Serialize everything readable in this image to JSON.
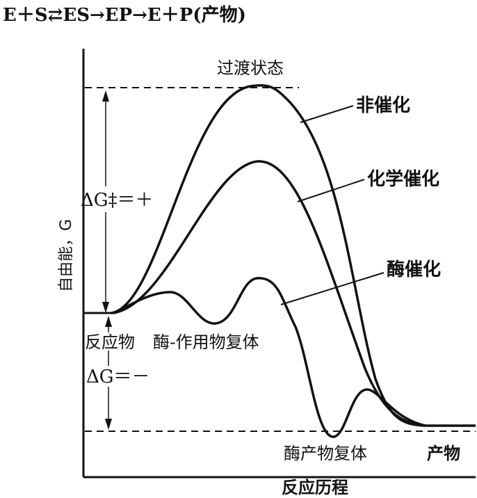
{
  "equation": "E＋S⇄ES→EP→E＋P(产物)",
  "y_axis_label": "自由能，G",
  "x_axis_label": "反应历程",
  "transition_state_label": "过渡状态",
  "delta_g_activation": "ΔG‡＝＋",
  "delta_g_reaction": "ΔG＝－",
  "reactant_label": "反应物",
  "es_complex_label": "酶-作用物复体",
  "ep_complex_label": "酶产物复体",
  "product_label": "产物",
  "curves": [
    {
      "name": "非催化"
    },
    {
      "name": "化学催化"
    },
    {
      "name": "酶催化"
    }
  ],
  "colors": {
    "ink": "#111111",
    "background": "#ffffff"
  }
}
